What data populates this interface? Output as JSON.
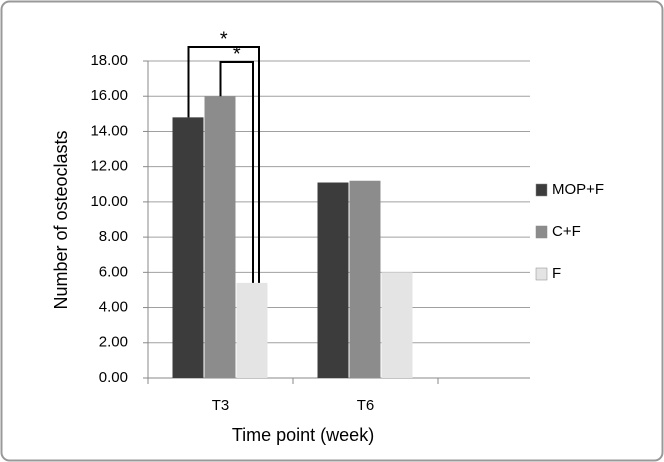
{
  "chart_data": {
    "type": "bar",
    "x_label": "Time point (week)",
    "y_label": "Number of osteoclasts",
    "categories": [
      "T3",
      "T6",
      null
    ],
    "series": [
      {
        "name": "MOP+F",
        "color": "#3c3c3c",
        "values": [
          14.8,
          11.1,
          null
        ]
      },
      {
        "name": "C+F",
        "color": "#8c8c8c",
        "values": [
          16.0,
          11.2,
          null
        ]
      },
      {
        "name": "F",
        "color": "#e4e4e4",
        "values": [
          5.4,
          6.0,
          null
        ]
      }
    ],
    "ylim": [
      0,
      18
    ],
    "yticks": [
      {
        "value": 0,
        "label": "0.00"
      },
      {
        "value": 2,
        "label": "2.00"
      },
      {
        "value": 4,
        "label": "4.00"
      },
      {
        "value": 6,
        "label": "6.00"
      },
      {
        "value": 8,
        "label": "8.00"
      },
      {
        "value": 10,
        "label": "10.00"
      },
      {
        "value": 12,
        "label": "12.00"
      },
      {
        "value": 14,
        "label": "14.00"
      },
      {
        "value": 16,
        "label": "16.00"
      },
      {
        "value": 18,
        "label": "18.00"
      }
    ],
    "grid": true,
    "legend": "right",
    "annotations": [
      "*",
      "*"
    ]
  }
}
